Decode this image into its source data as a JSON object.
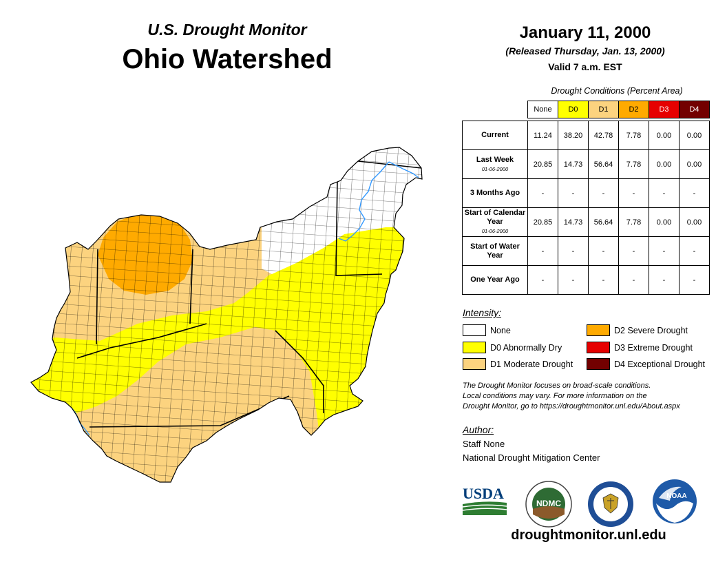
{
  "header": {
    "subtitle": "U.S. Drought Monitor",
    "title": "Ohio Watershed",
    "date": "January 11, 2000",
    "released": "(Released Thursday, Jan. 13, 2000)",
    "valid": "Valid 7 a.m. EST"
  },
  "table": {
    "caption": "Drought Conditions (Percent Area)",
    "columns": [
      "None",
      "D0",
      "D1",
      "D2",
      "D3",
      "D4"
    ],
    "column_colors": [
      "#ffffff",
      "#ffff00",
      "#fcd37f",
      "#ffaa00",
      "#e60000",
      "#730000"
    ],
    "rows": [
      {
        "label": "Current",
        "sub": "",
        "values": [
          "11.24",
          "38.20",
          "42.78",
          "7.78",
          "0.00",
          "0.00"
        ]
      },
      {
        "label": "Last Week",
        "sub": "01-06-2000",
        "values": [
          "20.85",
          "14.73",
          "56.64",
          "7.78",
          "0.00",
          "0.00"
        ]
      },
      {
        "label": "3 Months Ago",
        "sub": "",
        "values": [
          "-",
          "-",
          "-",
          "-",
          "-",
          "-"
        ]
      },
      {
        "label": "Start of Calendar Year",
        "sub": "01-06-2000",
        "values": [
          "20.85",
          "14.73",
          "56.64",
          "7.78",
          "0.00",
          "0.00"
        ]
      },
      {
        "label": "Start of Water Year",
        "sub": "",
        "values": [
          "-",
          "-",
          "-",
          "-",
          "-",
          "-"
        ]
      },
      {
        "label": "One Year Ago",
        "sub": "",
        "values": [
          "-",
          "-",
          "-",
          "-",
          "-",
          "-"
        ]
      }
    ]
  },
  "legend": {
    "heading": "Intensity:",
    "items": [
      {
        "label": "None",
        "color": "#ffffff"
      },
      {
        "label": "D0 Abnormally Dry",
        "color": "#ffff00"
      },
      {
        "label": "D1 Moderate Drought",
        "color": "#fcd37f"
      },
      {
        "label": "D2 Severe Drought",
        "color": "#ffaa00"
      },
      {
        "label": "D3 Extreme Drought",
        "color": "#e60000"
      },
      {
        "label": "D4 Exceptional Drought",
        "color": "#730000"
      }
    ]
  },
  "note": {
    "line1": "The Drought Monitor focuses on broad-scale conditions.",
    "line2": "Local conditions may vary. For more information on the",
    "line3": "Drought Monitor, go to https://droughtmonitor.unl.edu/About.aspx"
  },
  "author": {
    "heading": "Author:",
    "name": "Staff None",
    "org": "National Drought Mitigation Center"
  },
  "logos": {
    "usda": "USDA",
    "ndmc": "NDMC",
    "noaa": "NOAA"
  },
  "footer": {
    "site": "droughtmonitor.unl.edu"
  }
}
